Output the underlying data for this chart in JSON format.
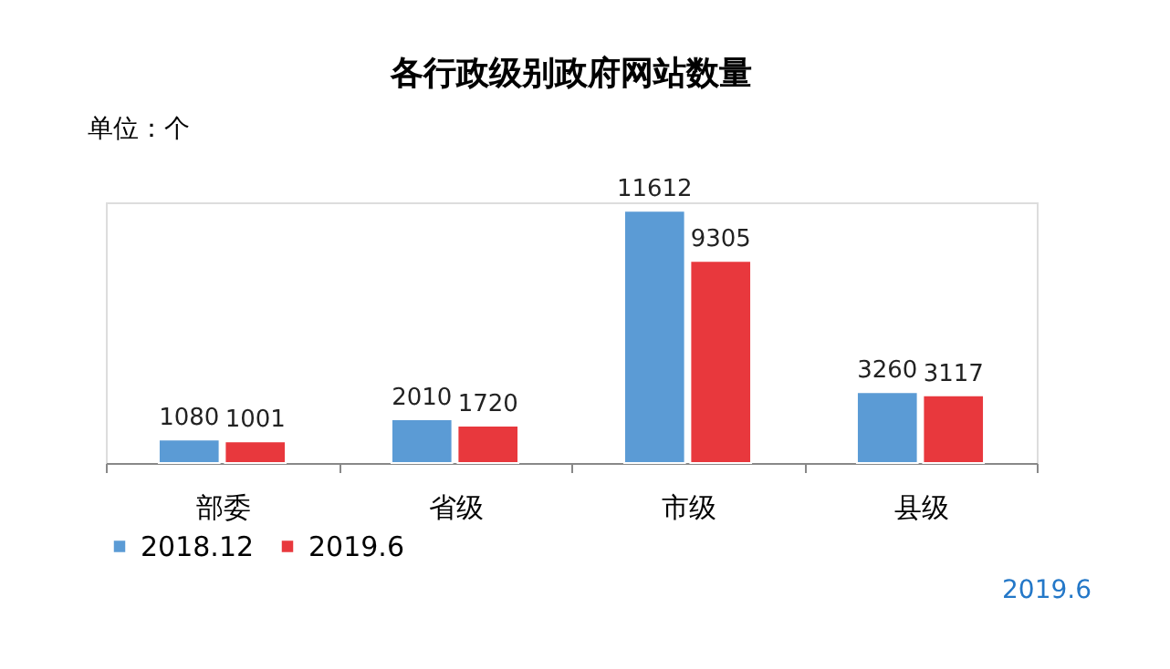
{
  "chart_data": {
    "type": "bar",
    "title": "各行政级别政府网站数量",
    "categories": [
      "部委",
      "省级",
      "市级",
      "县级"
    ],
    "series": [
      {
        "name": "2018.12",
        "color": "#5b9bd5",
        "values": [
          1080,
          2010,
          11612,
          3260
        ]
      },
      {
        "name": "2019.6",
        "color": "#e8383d",
        "values": [
          1001,
          1720,
          9305,
          3117
        ]
      }
    ],
    "data_labels": true,
    "legend": "bottom",
    "grid": false,
    "tick_labels": "x",
    "annotations": [
      "单位：个",
      "2019.6"
    ]
  }
}
